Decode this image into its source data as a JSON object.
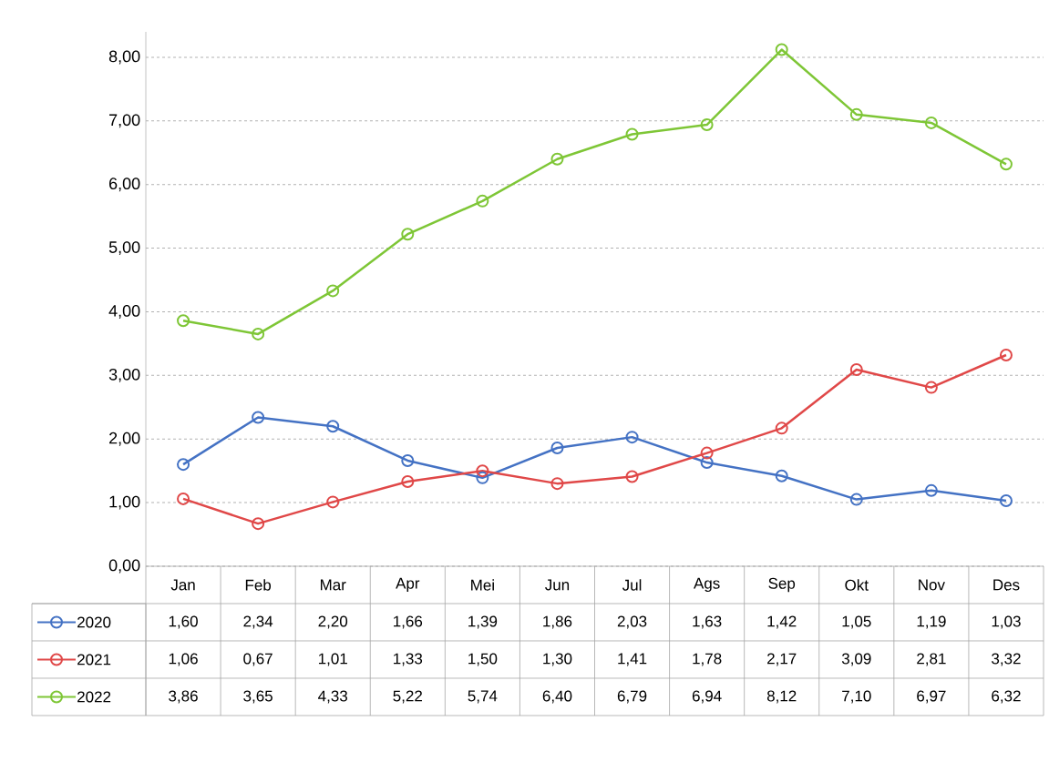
{
  "chart_data": {
    "type": "line",
    "categories": [
      "Jan",
      "Feb",
      "Mar",
      "Apr",
      "Mei",
      "Jun",
      "Jul",
      "Ags",
      "Sep",
      "Okt",
      "Nov",
      "Des"
    ],
    "series": [
      {
        "name": "2020",
        "color": "#4472c4",
        "values": [
          1.6,
          2.34,
          2.2,
          1.66,
          1.39,
          1.86,
          2.03,
          1.63,
          1.42,
          1.05,
          1.19,
          1.03
        ],
        "value_labels": [
          "1,60",
          "2,34",
          "2,20",
          "1,66",
          "1,39",
          "1,86",
          "2,03",
          "1,63",
          "1,42",
          "1,05",
          "1,19",
          "1,03"
        ]
      },
      {
        "name": "2021",
        "color": "#e04848",
        "values": [
          1.06,
          0.67,
          1.01,
          1.33,
          1.5,
          1.3,
          1.41,
          1.78,
          2.17,
          3.09,
          2.81,
          3.32
        ],
        "value_labels": [
          "1,06",
          "0,67",
          "1,01",
          "1,33",
          "1,50",
          "1,30",
          "1,41",
          "1,78",
          "2,17",
          "3,09",
          "2,81",
          "3,32"
        ]
      },
      {
        "name": "2022",
        "color": "#7ec636",
        "values": [
          3.86,
          3.65,
          4.33,
          5.22,
          5.74,
          6.4,
          6.79,
          6.94,
          8.12,
          7.1,
          6.97,
          6.32
        ],
        "value_labels": [
          "3,86",
          "3,65",
          "4,33",
          "5,22",
          "5,74",
          "6,40",
          "6,79",
          "6,94",
          "8,12",
          "7,10",
          "6,97",
          "6,32"
        ]
      }
    ],
    "ylim": [
      0,
      8.4
    ],
    "yticks": [
      {
        "value": 0,
        "label": "0,00"
      },
      {
        "value": 1,
        "label": "1,00"
      },
      {
        "value": 2,
        "label": "2,00"
      },
      {
        "value": 3,
        "label": "3,00"
      },
      {
        "value": 4,
        "label": "4,00"
      },
      {
        "value": 5,
        "label": "5,00"
      },
      {
        "value": 6,
        "label": "6,00"
      },
      {
        "value": 7,
        "label": "7,00"
      },
      {
        "value": 8,
        "label": "8,00"
      }
    ],
    "grid": "y",
    "legend": "bottom",
    "marker": "circle",
    "line_style": "solid"
  }
}
